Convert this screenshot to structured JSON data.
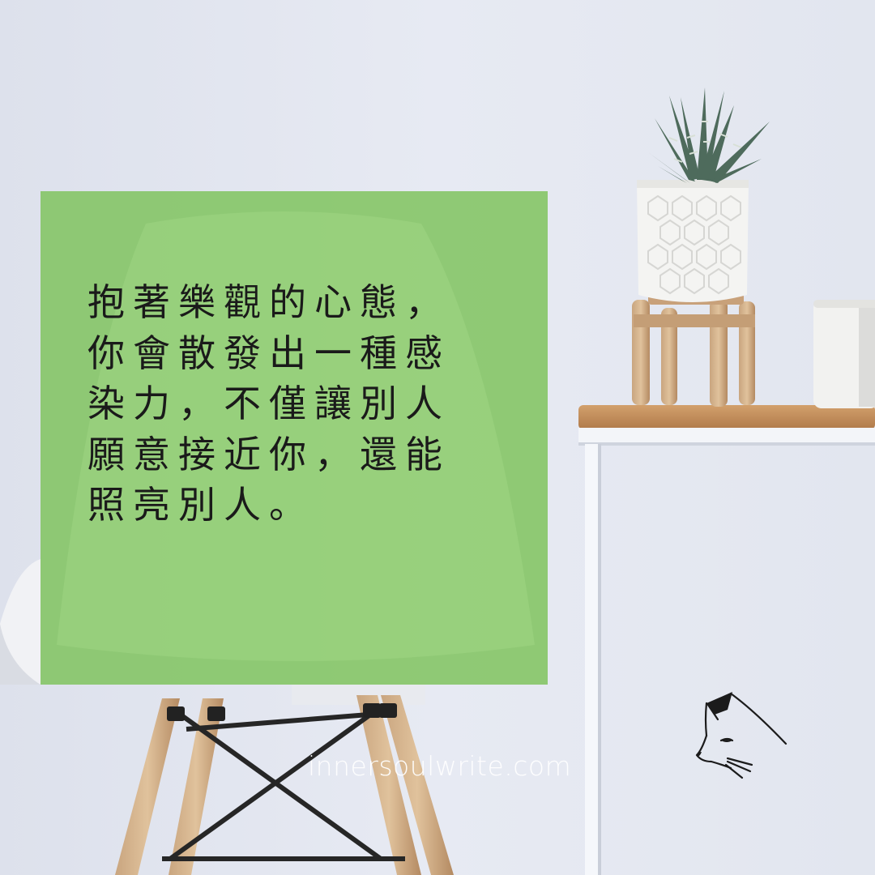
{
  "quote": {
    "lines": [
      "抱著樂觀的心態，",
      "你會散發出一種感",
      "染力，不僅讓別人",
      "願意接近你，還能",
      "照亮別人。"
    ]
  },
  "website": "innersoulwrite.com",
  "colors": {
    "panel": "#80c460",
    "text": "#1a1a1a",
    "wall": "#e4e8f1",
    "wood": "#c89a68",
    "url": "#ffffff"
  },
  "icons": {
    "logo": "cat-head-icon"
  }
}
